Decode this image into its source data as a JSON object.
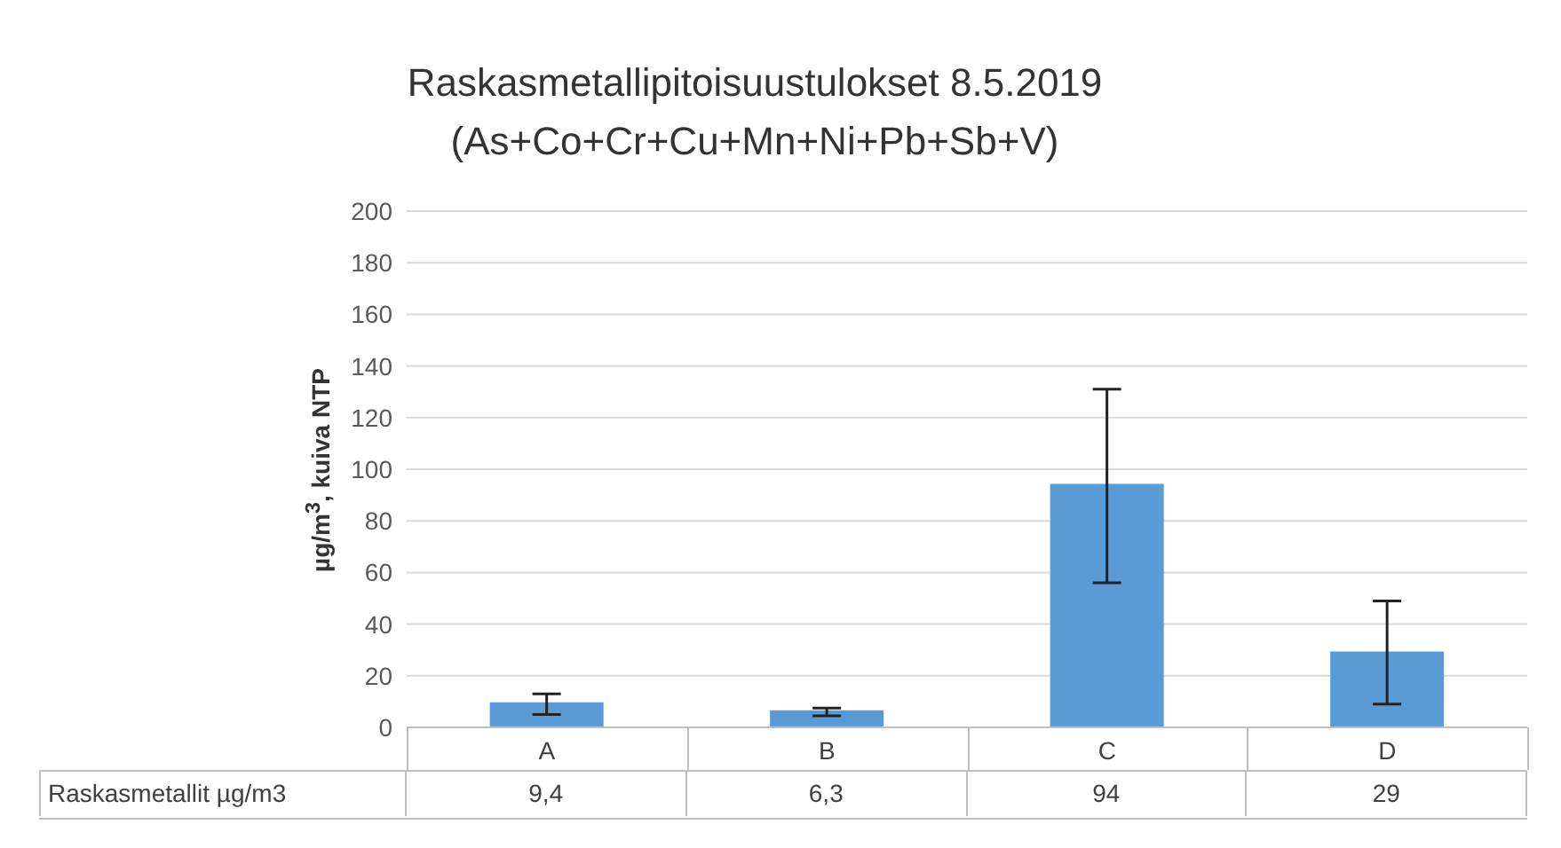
{
  "chart_data": {
    "type": "bar",
    "title": "Raskasmetallipitoisuustulokset 8.5.2019",
    "subtitle": "(As+Co+Cr+Cu+Mn+Ni+Pb+Sb+V)",
    "ylabel": "µg/m$^{3}$, kuiva NTP",
    "categories": [
      "A",
      "B",
      "C",
      "D"
    ],
    "series": [
      {
        "name": "Raskasmetallit µg/m3",
        "color": "#5b9bd5",
        "values": [
          9.4,
          6.3,
          94,
          29
        ],
        "value_labels": [
          "9,4",
          "6,3",
          "94",
          "29"
        ],
        "errors": [
          [
            5,
            13
          ],
          [
            4.5,
            7.5
          ],
          [
            56,
            131
          ],
          [
            9,
            49
          ]
        ]
      }
    ],
    "ylim": [
      0,
      200
    ],
    "yticks": [
      0,
      20,
      40,
      60,
      80,
      100,
      120,
      140,
      160,
      180,
      200
    ],
    "grid": "y"
  }
}
